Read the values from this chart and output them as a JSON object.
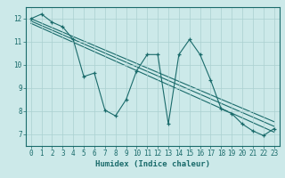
{
  "xlabel": "Humidex (Indice chaleur)",
  "ylabel": "",
  "bg_color": "#cce9e9",
  "line_color": "#1a6b6b",
  "grid_color": "#aad0d0",
  "xlim": [
    -0.5,
    23.5
  ],
  "ylim": [
    6.5,
    12.5
  ],
  "xticks": [
    0,
    1,
    2,
    3,
    4,
    5,
    6,
    7,
    8,
    9,
    10,
    11,
    12,
    13,
    14,
    15,
    16,
    17,
    18,
    19,
    20,
    21,
    22,
    23
  ],
  "yticks": [
    7,
    8,
    9,
    10,
    11,
    12
  ],
  "series1_x": [
    0,
    1,
    2,
    3,
    4,
    5,
    6,
    7,
    8,
    9,
    10,
    11,
    12,
    13,
    14,
    15,
    16,
    17,
    18,
    19,
    20,
    21,
    22,
    23
  ],
  "series1_y": [
    12.0,
    12.2,
    11.85,
    11.65,
    11.1,
    9.5,
    9.65,
    8.05,
    7.8,
    8.5,
    9.75,
    10.45,
    10.45,
    7.45,
    10.45,
    11.1,
    10.45,
    9.35,
    8.1,
    7.9,
    7.45,
    7.15,
    6.95,
    7.25
  ],
  "trend1_x": [
    0,
    23
  ],
  "trend1_y": [
    12.0,
    7.55
  ],
  "trend2_x": [
    0,
    23
  ],
  "trend2_y": [
    11.9,
    7.35
  ],
  "trend3_x": [
    0,
    23
  ],
  "trend3_y": [
    11.8,
    7.1
  ]
}
